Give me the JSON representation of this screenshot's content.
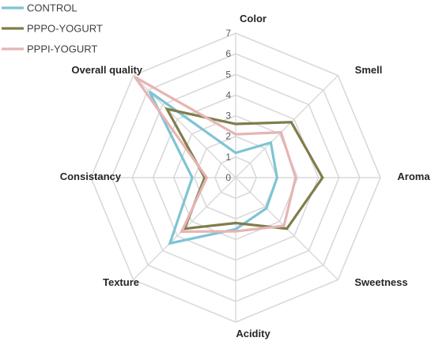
{
  "chart_data": {
    "type": "radar",
    "title": "",
    "categories": [
      "Color",
      "Smell",
      "Aroma",
      "Sweetness",
      "Acidity",
      "Texture",
      "Consistancy",
      "Overall quality"
    ],
    "scale": {
      "min": 0,
      "max": 7,
      "ticks": [
        0,
        1,
        2,
        3,
        4,
        5,
        6,
        7
      ]
    },
    "grid": true,
    "legend_position": "top-left",
    "series": [
      {
        "name": "CONTROL",
        "color": "#7ec4d4",
        "values": [
          1.2,
          2.4,
          2.0,
          2.1,
          2.5,
          4.5,
          2.1,
          5.9
        ]
      },
      {
        "name": "PPPO-YOGURT",
        "color": "#7f7d4a",
        "values": [
          2.6,
          3.8,
          4.2,
          3.5,
          2.2,
          3.5,
          1.5,
          4.7
        ]
      },
      {
        "name": "PPPI-YOGURT",
        "color": "#e6b4b4",
        "values": [
          2.1,
          3.1,
          2.9,
          3.3,
          2.6,
          3.7,
          1.4,
          6.9
        ]
      }
    ]
  }
}
